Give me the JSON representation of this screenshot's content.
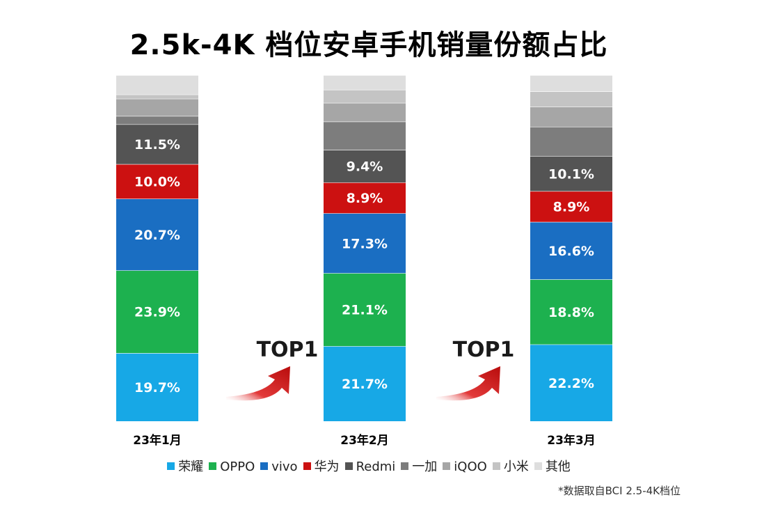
{
  "chart_data": {
    "type": "bar",
    "stacked": true,
    "normalized": true,
    "title": "2.5k-4K 档位安卓手机销量份额占比",
    "categories": [
      "23年1月",
      "23年2月",
      "23年3月"
    ],
    "series": [
      {
        "name": "荣耀",
        "color": "#17a8e6",
        "values": [
          19.7,
          21.7,
          22.2
        ],
        "show_labels": true
      },
      {
        "name": "OPPO",
        "color": "#1db14f",
        "values": [
          23.9,
          21.1,
          18.8
        ],
        "show_labels": true
      },
      {
        "name": "vivo",
        "color": "#1a6ec2",
        "values": [
          20.7,
          17.3,
          16.6
        ],
        "show_labels": true
      },
      {
        "name": "华为",
        "color": "#cc1111",
        "values": [
          10.0,
          8.9,
          8.9
        ],
        "show_labels": true
      },
      {
        "name": "Redmi",
        "color": "#545454",
        "values": [
          11.5,
          9.4,
          10.1
        ],
        "show_labels": true
      },
      {
        "name": "一加",
        "color": "#7d7d7d",
        "values": [
          2.4,
          8.2,
          8.5
        ],
        "show_labels": false
      },
      {
        "name": "iQOO",
        "color": "#a6a6a6",
        "values": [
          5.0,
          5.4,
          5.8
        ],
        "show_labels": false
      },
      {
        "name": "小米",
        "color": "#c4c4c4",
        "values": [
          1.2,
          3.8,
          4.4
        ],
        "show_labels": false
      },
      {
        "name": "其他",
        "color": "#dedede",
        "values": [
          5.6,
          4.2,
          4.7
        ],
        "show_labels": false
      }
    ],
    "annotations": [
      {
        "text": "TOP1",
        "between": [
          "23年1月",
          "23年2月"
        ]
      },
      {
        "text": "TOP1",
        "between": [
          "23年2月",
          "23年3月"
        ]
      }
    ],
    "legend_position": "bottom",
    "grid": false
  },
  "source_note": "*数据取自BCI 2.5-4K档位"
}
